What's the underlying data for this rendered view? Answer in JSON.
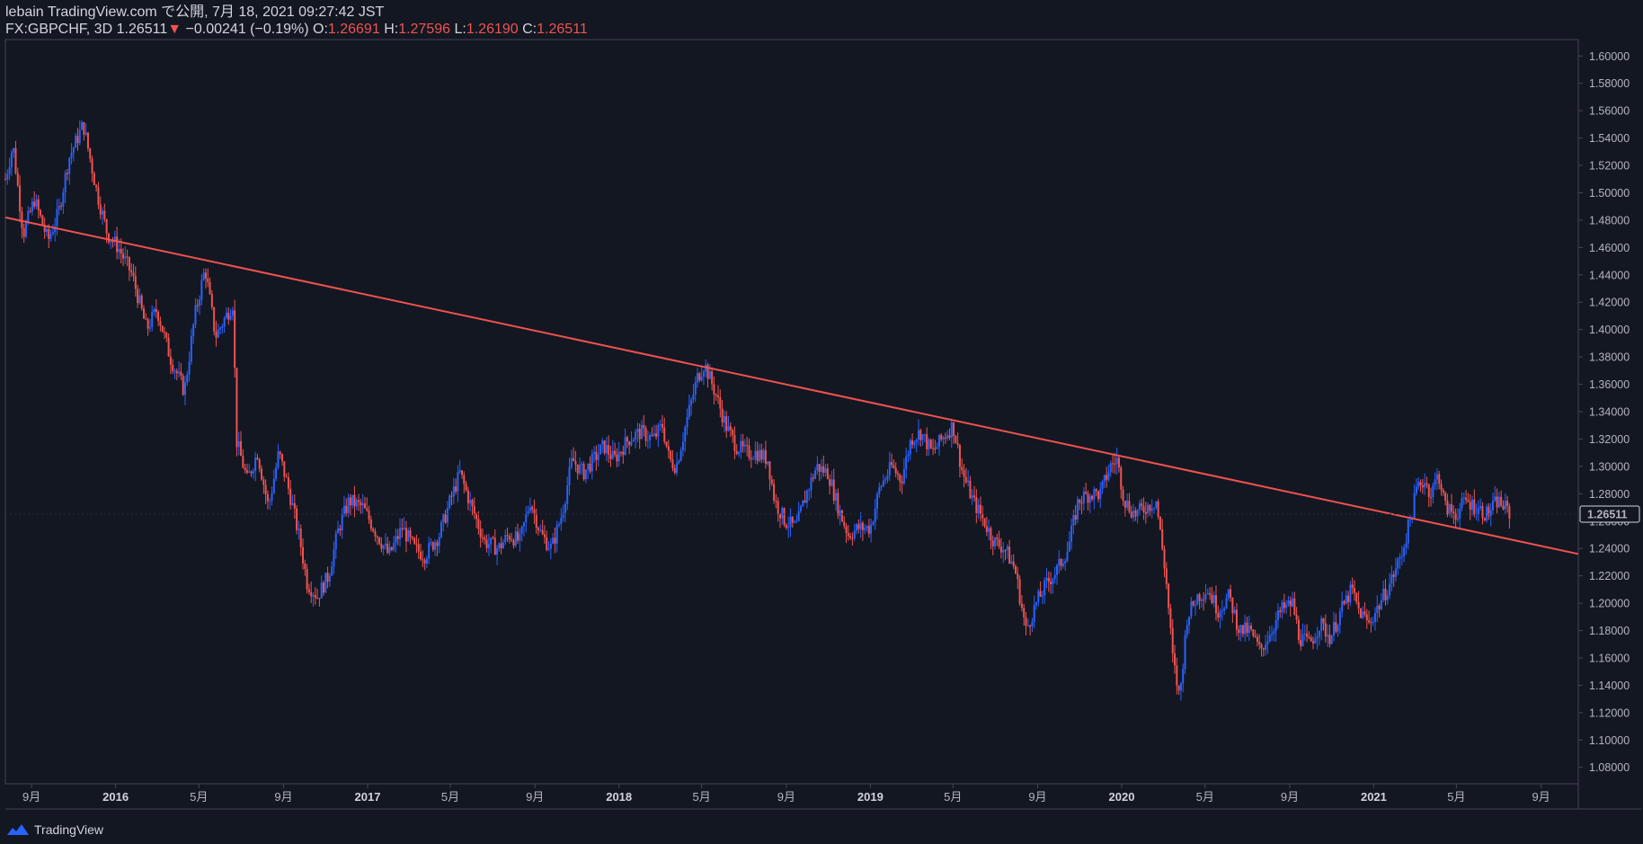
{
  "header": {
    "publisher": "lebain TradingView.com で公開, 7月 18, 2021 09:27:42 JST",
    "symbol": "FX:GBPCHF, 3D",
    "last": "1.26511",
    "arrow": "▼",
    "change": "−0.00241 (−0.19%)",
    "o_label": "O:",
    "o_value": "1.26691",
    "h_label": "H:",
    "h_value": "1.27596",
    "l_label": "L:",
    "l_value": "1.26190",
    "c_label": "C:",
    "c_value": "1.26511"
  },
  "footer": {
    "brand": "TradingView"
  },
  "colors": {
    "background": "#131722",
    "up": "#2962ff",
    "down": "#ef5350",
    "trendline": "#f0524f",
    "grid": "#2a2e39"
  },
  "chart_data": {
    "type": "candlestick",
    "symbol": "FX:GBPCHF",
    "interval": "3D",
    "y_axis": {
      "position": "right",
      "ticks": [
        1.08,
        1.1,
        1.12,
        1.14,
        1.16,
        1.18,
        1.2,
        1.22,
        1.24,
        1.26,
        1.28,
        1.3,
        1.32,
        1.34,
        1.36,
        1.38,
        1.4,
        1.42,
        1.44,
        1.46,
        1.48,
        1.5,
        1.52,
        1.54,
        1.56,
        1.58,
        1.6
      ],
      "tick_labels": [
        "1.08000",
        "1.10000",
        "1.12000",
        "1.14000",
        "1.16000",
        "1.18000",
        "1.20000",
        "1.22000",
        "1.24000",
        "1.26000",
        "1.28000",
        "1.30000",
        "1.32000",
        "1.34000",
        "1.36000",
        "1.38000",
        "1.40000",
        "1.42000",
        "1.44000",
        "1.46000",
        "1.48000",
        "1.50000",
        "1.52000",
        "1.54000",
        "1.56000",
        "1.58000",
        "1.60000"
      ],
      "range": [
        1.068,
        1.612
      ],
      "last_price_label": "1.26511",
      "last_price": 1.26511
    },
    "x_axis": {
      "range": [
        "2015-07-25",
        "2021-10-25"
      ],
      "ticks": [
        {
          "date": "2015-09-01",
          "label": "9月",
          "bold": false
        },
        {
          "date": "2016-01-01",
          "label": "2016",
          "bold": true
        },
        {
          "date": "2016-05-01",
          "label": "5月",
          "bold": false
        },
        {
          "date": "2016-09-01",
          "label": "9月",
          "bold": false
        },
        {
          "date": "2017-01-01",
          "label": "2017",
          "bold": true
        },
        {
          "date": "2017-05-01",
          "label": "5月",
          "bold": false
        },
        {
          "date": "2017-09-01",
          "label": "9月",
          "bold": false
        },
        {
          "date": "2018-01-01",
          "label": "2018",
          "bold": true
        },
        {
          "date": "2018-05-01",
          "label": "5月",
          "bold": false
        },
        {
          "date": "2018-09-01",
          "label": "9月",
          "bold": false
        },
        {
          "date": "2019-01-01",
          "label": "2019",
          "bold": true
        },
        {
          "date": "2019-05-01",
          "label": "5月",
          "bold": false
        },
        {
          "date": "2019-09-01",
          "label": "9月",
          "bold": false
        },
        {
          "date": "2020-01-01",
          "label": "2020",
          "bold": true
        },
        {
          "date": "2020-05-01",
          "label": "5月",
          "bold": false
        },
        {
          "date": "2020-09-01",
          "label": "9月",
          "bold": false
        },
        {
          "date": "2021-01-01",
          "label": "2021",
          "bold": true
        },
        {
          "date": "2021-05-01",
          "label": "5月",
          "bold": false
        },
        {
          "date": "2021-09-01",
          "label": "9月",
          "bold": false
        }
      ]
    },
    "price_path": [
      [
        "2015-07-25",
        1.51
      ],
      [
        "2015-08-05",
        1.535
      ],
      [
        "2015-08-20",
        1.47
      ],
      [
        "2015-09-05",
        1.495
      ],
      [
        "2015-09-25",
        1.465
      ],
      [
        "2015-10-10",
        1.485
      ],
      [
        "2015-10-25",
        1.525
      ],
      [
        "2015-11-15",
        1.55
      ],
      [
        "2015-12-05",
        1.5
      ],
      [
        "2015-12-20",
        1.47
      ],
      [
        "2016-01-05",
        1.46
      ],
      [
        "2016-01-25",
        1.44
      ],
      [
        "2016-02-15",
        1.4
      ],
      [
        "2016-03-01",
        1.415
      ],
      [
        "2016-03-20",
        1.38
      ],
      [
        "2016-04-10",
        1.355
      ],
      [
        "2016-04-25",
        1.41
      ],
      [
        "2016-05-10",
        1.445
      ],
      [
        "2016-05-25",
        1.395
      ],
      [
        "2016-06-20",
        1.42
      ],
      [
        "2016-06-24",
        1.32
      ],
      [
        "2016-07-10",
        1.29
      ],
      [
        "2016-07-25",
        1.31
      ],
      [
        "2016-08-10",
        1.27
      ],
      [
        "2016-08-25",
        1.31
      ],
      [
        "2016-09-10",
        1.28
      ],
      [
        "2016-09-25",
        1.245
      ],
      [
        "2016-10-05",
        1.215
      ],
      [
        "2016-10-20",
        1.205
      ],
      [
        "2016-11-05",
        1.22
      ],
      [
        "2016-11-20",
        1.255
      ],
      [
        "2016-12-05",
        1.275
      ],
      [
        "2016-12-25",
        1.27
      ],
      [
        "2017-01-15",
        1.25
      ],
      [
        "2017-02-01",
        1.235
      ],
      [
        "2017-02-20",
        1.255
      ],
      [
        "2017-03-10",
        1.24
      ],
      [
        "2017-03-25",
        1.235
      ],
      [
        "2017-04-15",
        1.25
      ],
      [
        "2017-05-01",
        1.275
      ],
      [
        "2017-05-15",
        1.295
      ],
      [
        "2017-06-01",
        1.27
      ],
      [
        "2017-06-20",
        1.245
      ],
      [
        "2017-07-10",
        1.24
      ],
      [
        "2017-07-25",
        1.25
      ],
      [
        "2017-08-10",
        1.245
      ],
      [
        "2017-08-25",
        1.275
      ],
      [
        "2017-09-10",
        1.25
      ],
      [
        "2017-09-25",
        1.24
      ],
      [
        "2017-10-10",
        1.265
      ],
      [
        "2017-10-25",
        1.305
      ],
      [
        "2017-11-10",
        1.295
      ],
      [
        "2017-11-25",
        1.305
      ],
      [
        "2017-12-10",
        1.315
      ],
      [
        "2017-12-25",
        1.305
      ],
      [
        "2018-01-15",
        1.32
      ],
      [
        "2018-02-01",
        1.325
      ],
      [
        "2018-02-20",
        1.32
      ],
      [
        "2018-03-05",
        1.33
      ],
      [
        "2018-03-15",
        1.305
      ],
      [
        "2018-03-25",
        1.3
      ],
      [
        "2018-04-10",
        1.335
      ],
      [
        "2018-04-25",
        1.365
      ],
      [
        "2018-05-05",
        1.375
      ],
      [
        "2018-05-20",
        1.355
      ],
      [
        "2018-06-05",
        1.33
      ],
      [
        "2018-06-20",
        1.315
      ],
      [
        "2018-07-05",
        1.31
      ],
      [
        "2018-07-20",
        1.31
      ],
      [
        "2018-08-05",
        1.305
      ],
      [
        "2018-08-15",
        1.275
      ],
      [
        "2018-08-30",
        1.26
      ],
      [
        "2018-09-15",
        1.255
      ],
      [
        "2018-09-30",
        1.28
      ],
      [
        "2018-10-15",
        1.3
      ],
      [
        "2018-11-01",
        1.295
      ],
      [
        "2018-11-15",
        1.27
      ],
      [
        "2018-11-30",
        1.25
      ],
      [
        "2018-12-15",
        1.255
      ],
      [
        "2019-01-01",
        1.255
      ],
      [
        "2019-01-15",
        1.285
      ],
      [
        "2019-02-01",
        1.3
      ],
      [
        "2019-02-15",
        1.29
      ],
      [
        "2019-03-01",
        1.32
      ],
      [
        "2019-03-15",
        1.325
      ],
      [
        "2019-04-01",
        1.31
      ],
      [
        "2019-04-15",
        1.32
      ],
      [
        "2019-05-01",
        1.33
      ],
      [
        "2019-05-15",
        1.295
      ],
      [
        "2019-05-30",
        1.275
      ],
      [
        "2019-06-15",
        1.26
      ],
      [
        "2019-06-30",
        1.245
      ],
      [
        "2019-07-15",
        1.24
      ],
      [
        "2019-07-30",
        1.225
      ],
      [
        "2019-08-15",
        1.18
      ],
      [
        "2019-08-30",
        1.2
      ],
      [
        "2019-09-15",
        1.215
      ],
      [
        "2019-09-30",
        1.225
      ],
      [
        "2019-10-15",
        1.24
      ],
      [
        "2019-10-30",
        1.275
      ],
      [
        "2019-11-15",
        1.28
      ],
      [
        "2019-12-01",
        1.28
      ],
      [
        "2019-12-15",
        1.3
      ],
      [
        "2019-12-25",
        1.305
      ],
      [
        "2020-01-05",
        1.275
      ],
      [
        "2020-01-20",
        1.265
      ],
      [
        "2020-02-05",
        1.27
      ],
      [
        "2020-02-20",
        1.275
      ],
      [
        "2020-03-05",
        1.22
      ],
      [
        "2020-03-15",
        1.16
      ],
      [
        "2020-03-25",
        1.13
      ],
      [
        "2020-04-05",
        1.19
      ],
      [
        "2020-04-20",
        1.205
      ],
      [
        "2020-05-05",
        1.21
      ],
      [
        "2020-05-20",
        1.195
      ],
      [
        "2020-06-05",
        1.205
      ],
      [
        "2020-06-20",
        1.18
      ],
      [
        "2020-07-05",
        1.18
      ],
      [
        "2020-07-20",
        1.165
      ],
      [
        "2020-08-05",
        1.18
      ],
      [
        "2020-08-20",
        1.195
      ],
      [
        "2020-09-05",
        1.2
      ],
      [
        "2020-09-15",
        1.175
      ],
      [
        "2020-09-30",
        1.17
      ],
      [
        "2020-10-15",
        1.185
      ],
      [
        "2020-10-30",
        1.175
      ],
      [
        "2020-11-15",
        1.195
      ],
      [
        "2020-11-30",
        1.21
      ],
      [
        "2020-12-10",
        1.195
      ],
      [
        "2020-12-25",
        1.185
      ],
      [
        "2021-01-10",
        1.2
      ],
      [
        "2021-01-25",
        1.215
      ],
      [
        "2021-02-10",
        1.235
      ],
      [
        "2021-02-25",
        1.265
      ],
      [
        "2021-03-05",
        1.285
      ],
      [
        "2021-03-15",
        1.29
      ],
      [
        "2021-03-25",
        1.28
      ],
      [
        "2021-04-05",
        1.295
      ],
      [
        "2021-04-15",
        1.27
      ],
      [
        "2021-04-30",
        1.265
      ],
      [
        "2021-05-15",
        1.275
      ],
      [
        "2021-05-30",
        1.27
      ],
      [
        "2021-06-15",
        1.265
      ],
      [
        "2021-06-30",
        1.275
      ],
      [
        "2021-07-10",
        1.27
      ],
      [
        "2021-07-18",
        1.265
      ]
    ],
    "trendline": {
      "from": [
        "2015-07-25",
        1.482
      ],
      "to": [
        "2021-10-25",
        1.236
      ]
    }
  }
}
